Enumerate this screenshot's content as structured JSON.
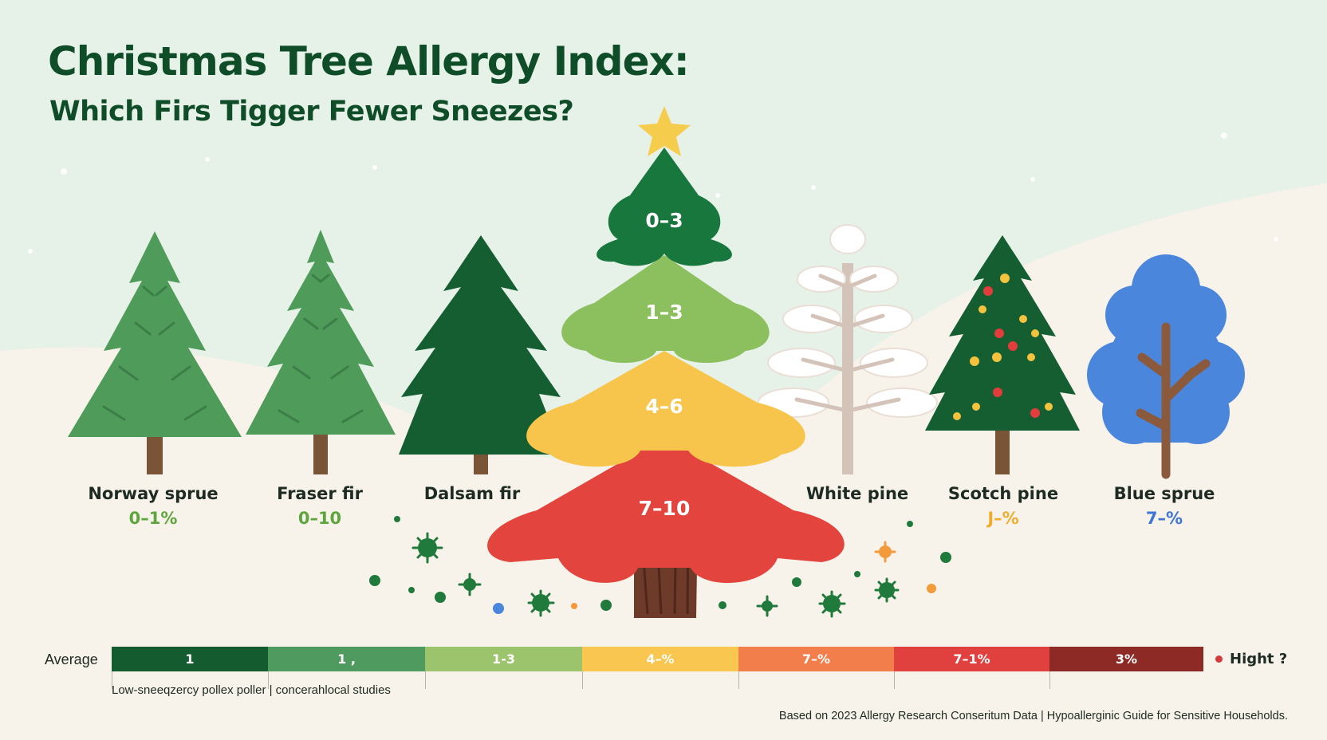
{
  "header": {
    "title": "Christmas Tree Allergy Index:",
    "subtitle": "Which Firs Tigger Fewer Sneezes?"
  },
  "trees": [
    {
      "name": "Norway sprue",
      "value": "0–1%",
      "value_color": "#5fa53d",
      "icon": "spruce-tree-icon"
    },
    {
      "name": "Fraser fir",
      "value": "0–10",
      "value_color": "#5fa53d",
      "icon": "fir-tree-icon"
    },
    {
      "name": "Dalsam fir",
      "value": "",
      "icon": "fir-tree-icon"
    },
    {
      "name": "White pine",
      "value": "",
      "icon": "white-pine-tree-icon"
    },
    {
      "name": "Scotch pine",
      "value": "J–%",
      "value_color": "#f0ac2c",
      "icon": "decorated-pine-tree-icon"
    },
    {
      "name": "Blue sprue",
      "value": "7–%",
      "value_color": "#3d74d6",
      "icon": "blue-tree-icon"
    }
  ],
  "central_tree": {
    "icon": "star-icon",
    "tiers": [
      {
        "label": "0–3",
        "color": "#17773c"
      },
      {
        "label": "1–3",
        "color": "#8cbf5d"
      },
      {
        "label": "4–6",
        "color": "#f7c54c"
      },
      {
        "label": "7–10",
        "color": "#e3443d"
      }
    ],
    "particles_icon": "pollen-icon"
  },
  "scale": {
    "start_label": "Average",
    "end_label": "Hight ?",
    "segments": [
      {
        "label": "1",
        "color": "#145b30"
      },
      {
        "label": "1 ,",
        "color": "#4f9a5f"
      },
      {
        "label": "1-3",
        "color": "#9bc46d"
      },
      {
        "label": "4–%",
        "color": "#f9c64f"
      },
      {
        "label": "7–%",
        "color": "#f27e4b"
      },
      {
        "label": "7–1%",
        "color": "#e0413e"
      },
      {
        "label": "3%",
        "color": "#8e2a26"
      }
    ],
    "note": "Low-sneeqzercy pollex poller | concerahlocal studies"
  },
  "footer": "Based on 2023 Allergy Research Conseritum Data | Hypoallerginic Guide for Sensitive Households."
}
